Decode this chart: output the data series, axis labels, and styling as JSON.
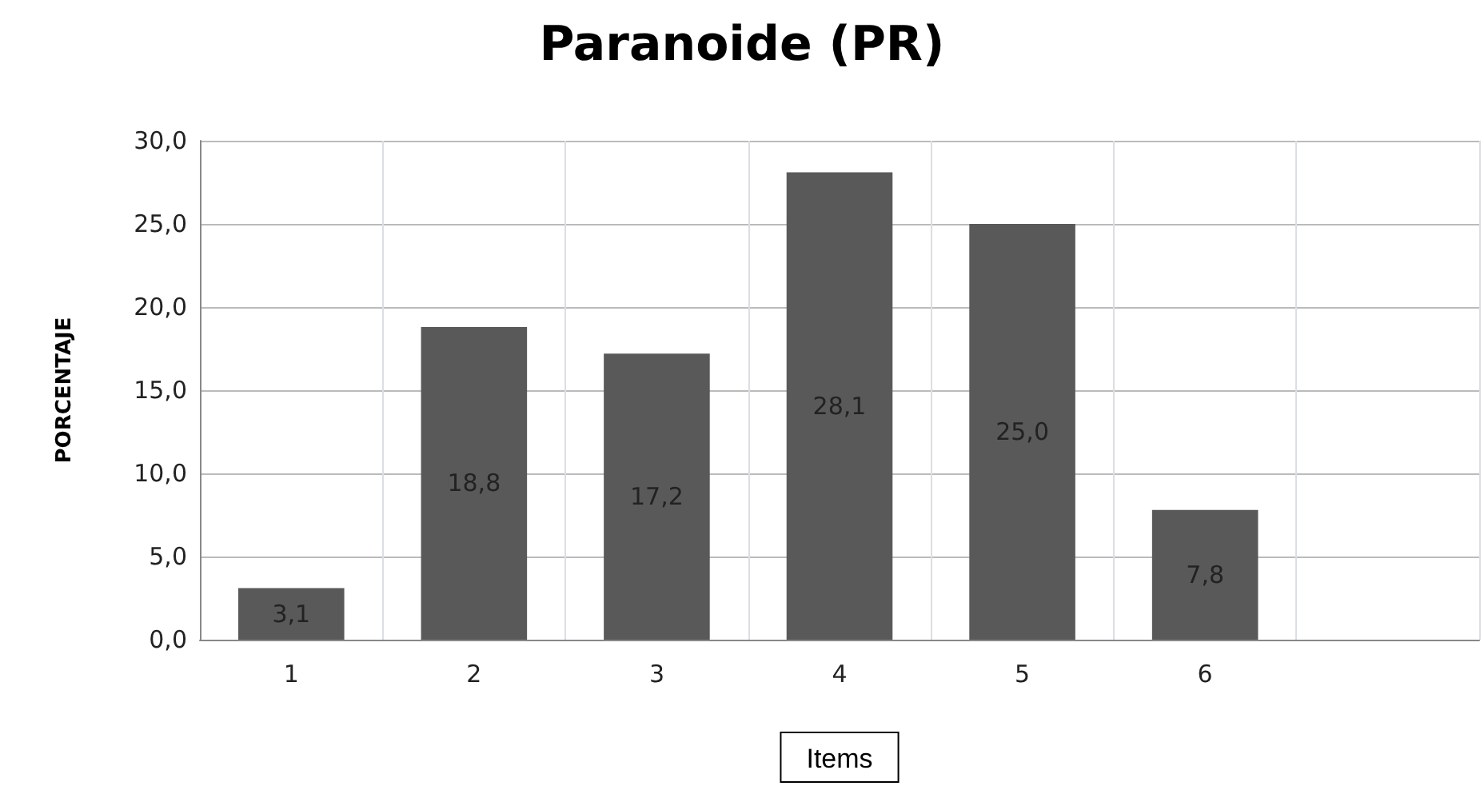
{
  "chart_data": {
    "type": "bar",
    "title": "Paranoide (PR)",
    "xlabel": "Items",
    "ylabel": "PORCENTAJE",
    "categories": [
      "1",
      "2",
      "3",
      "4",
      "5",
      "6",
      null
    ],
    "values": [
      3.1,
      18.8,
      17.2,
      28.1,
      25.0,
      7.8,
      null
    ],
    "value_labels": [
      "3,1",
      "18,8",
      "17,2",
      "28,1",
      "25,0",
      "7,8",
      null
    ],
    "color": "#595959",
    "ylim": [
      0,
      30
    ],
    "yticks": [
      {
        "value": 0,
        "label": "0,0"
      },
      {
        "value": 5,
        "label": "5,0"
      },
      {
        "value": 10,
        "label": "10,0"
      },
      {
        "value": 15,
        "label": "15,0"
      },
      {
        "value": 20,
        "label": "20,0"
      },
      {
        "value": 25,
        "label": "25,0"
      },
      {
        "value": 30,
        "label": "30,0"
      }
    ],
    "grid": true
  }
}
